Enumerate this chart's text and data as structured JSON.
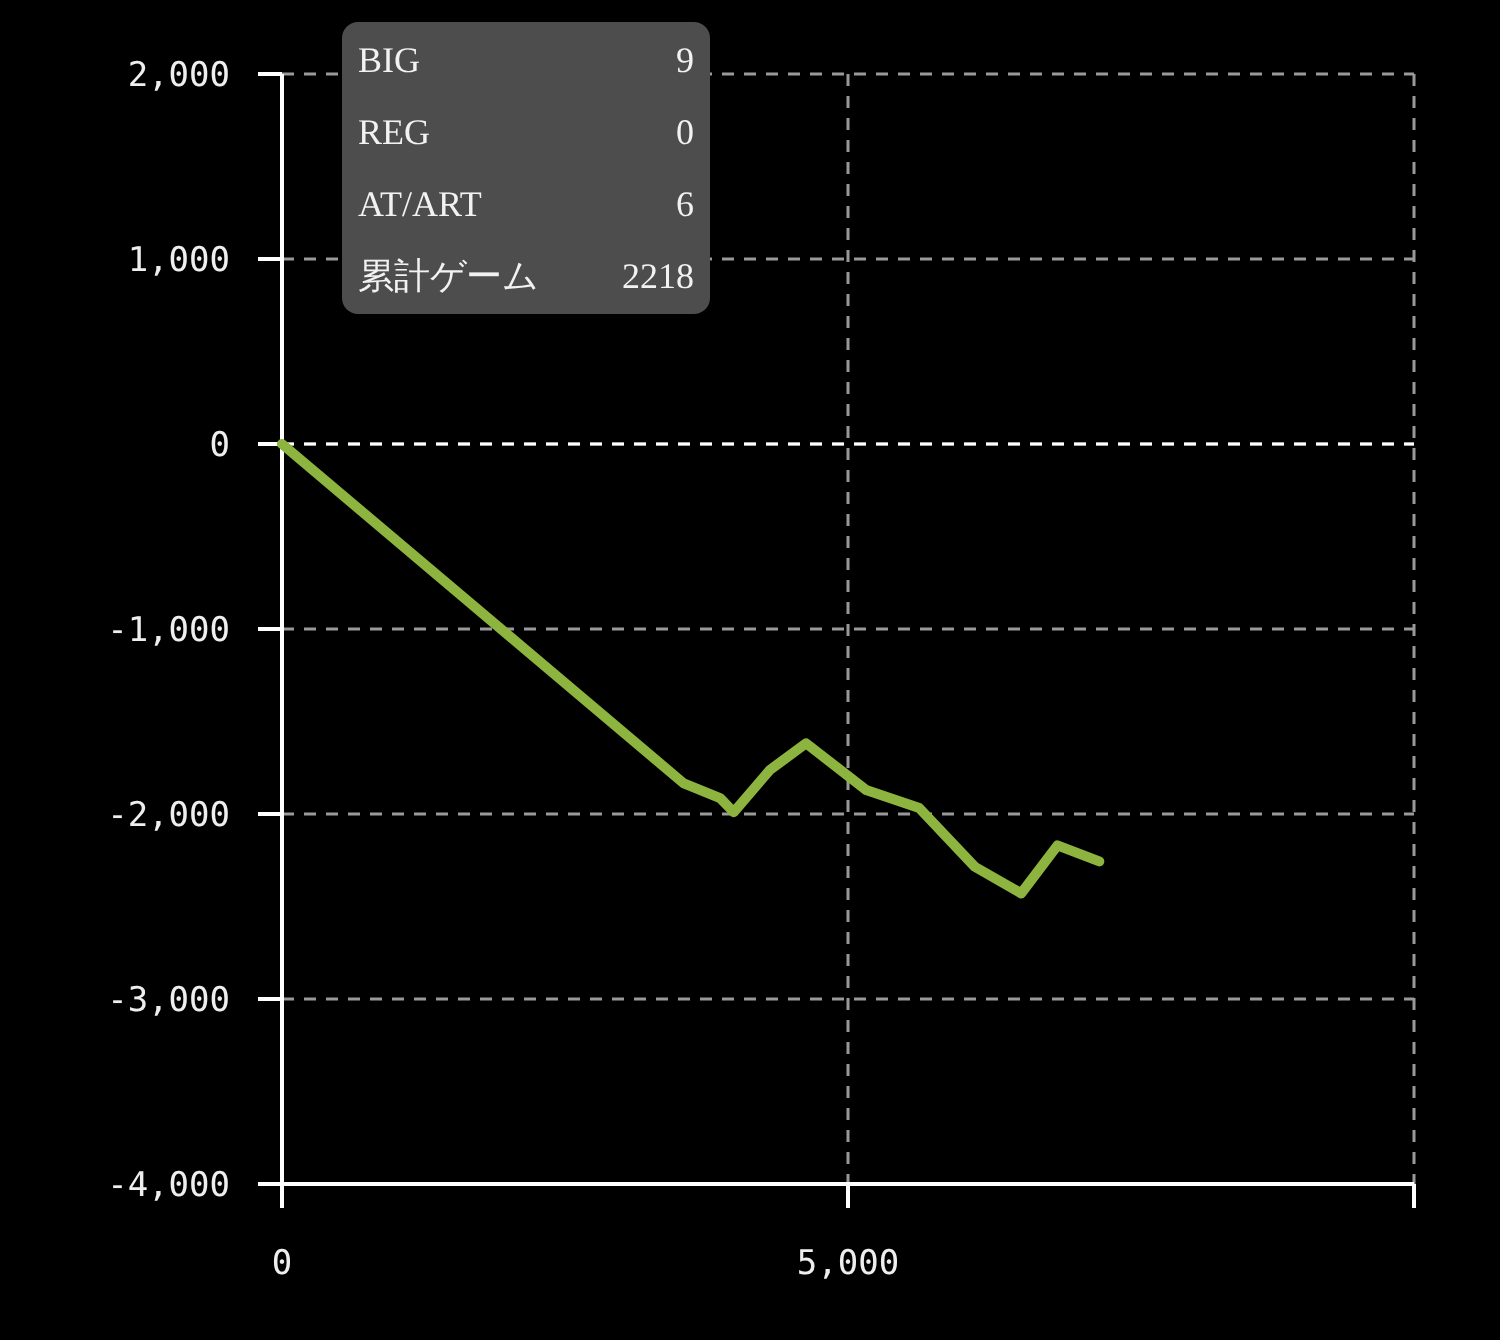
{
  "chart_data": {
    "type": "line",
    "x": [
      0,
      3550,
      3870,
      3990,
      4310,
      4630,
      5160,
      5630,
      6120,
      6530,
      6850,
      7220
    ],
    "series": [
      {
        "color": "#8db43e",
        "values": [
          0,
          -1835,
          -1914,
          -1990,
          -1762,
          -1618,
          -1870,
          -1968,
          -2285,
          -2429,
          -2170,
          -2256
        ]
      }
    ],
    "xlim": [
      0,
      10000
    ],
    "xticks": [
      0,
      {
        "value": 5000,
        "label": "5,000"
      },
      {
        "value": 10000,
        "label": null
      }
    ],
    "ylim": [
      -4000,
      2000
    ],
    "yticks": [
      {
        "value": 2000,
        "label": "2,000"
      },
      {
        "value": 1000,
        "label": "1,000"
      },
      0,
      {
        "value": -1000,
        "label": "-1,000"
      },
      {
        "value": -2000,
        "label": "-2,000"
      },
      {
        "value": -3000,
        "label": "-3,000"
      },
      {
        "value": -4000,
        "label": "-4,000"
      }
    ],
    "grid": true,
    "ref_lines": [
      {
        "axis": "y",
        "value": 0,
        "color": "#ffffff",
        "line_style": "dashed"
      }
    ],
    "annotations": [
      "BIG",
      "9",
      "REG",
      "0",
      "AT/ART",
      "6",
      "累計ゲーム",
      "2218"
    ]
  }
}
